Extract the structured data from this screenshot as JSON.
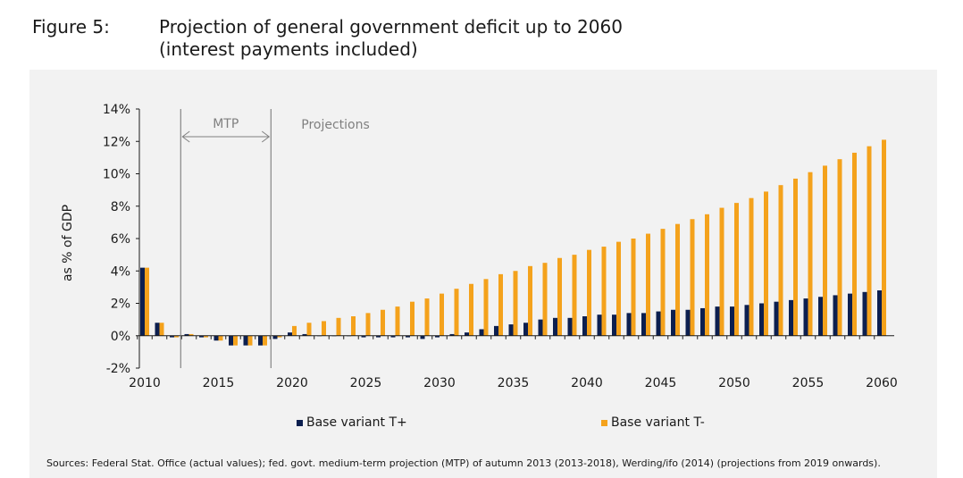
{
  "header": {
    "figure_label": "Figure 5:",
    "title_line1": "Projection of general government deficit up to 2060",
    "title_line2": "(interest payments included)"
  },
  "source_note": "Sources: Federal Stat. Office (actual values); fed. govt. medium-term projection (MTP) of autumn 2013 (2013-2018), Werding/ifo (2014) (projections from 2019 onwards).",
  "colors": {
    "t_plus": "#0c1f4f",
    "t_minus": "#f4a21c",
    "panel": "#f2f2f2",
    "axis": "#1a1a1a",
    "annotation": "#808080"
  },
  "chart_data": {
    "type": "bar",
    "ylabel": "as % of GDP",
    "ylim": [
      -2,
      14
    ],
    "yticks": [
      -2,
      0,
      2,
      4,
      6,
      8,
      10,
      12,
      14
    ],
    "ytick_labels": [
      "-2%",
      "0%",
      "2%",
      "4%",
      "6%",
      "8%",
      "10%",
      "12%",
      "14%"
    ],
    "xtick_labels": [
      "2010",
      "2015",
      "2020",
      "2025",
      "2030",
      "2035",
      "2040",
      "2045",
      "2050",
      "2055",
      "2060"
    ],
    "annotations": {
      "mtp_label": "MTP",
      "projections_label": "Projections",
      "mtp_start": 2013,
      "mtp_end": 2019
    },
    "legend_position": "bottom",
    "categories": [
      2010,
      2011,
      2012,
      2013,
      2014,
      2015,
      2016,
      2017,
      2018,
      2019,
      2020,
      2021,
      2022,
      2023,
      2024,
      2025,
      2026,
      2027,
      2028,
      2029,
      2030,
      2031,
      2032,
      2033,
      2034,
      2035,
      2036,
      2037,
      2038,
      2039,
      2040,
      2041,
      2042,
      2043,
      2044,
      2045,
      2046,
      2047,
      2048,
      2049,
      2050,
      2051,
      2052,
      2053,
      2054,
      2055,
      2056,
      2057,
      2058,
      2059,
      2060
    ],
    "series": [
      {
        "name": "Base variant T+",
        "values": [
          4.2,
          0.8,
          -0.1,
          0.1,
          -0.1,
          -0.3,
          -0.6,
          -0.6,
          -0.6,
          -0.2,
          0.2,
          0.1,
          0.0,
          0.0,
          0.0,
          -0.1,
          -0.1,
          -0.1,
          -0.1,
          -0.2,
          -0.1,
          0.1,
          0.2,
          0.4,
          0.6,
          0.7,
          0.8,
          1.0,
          1.1,
          1.1,
          1.2,
          1.3,
          1.3,
          1.4,
          1.4,
          1.5,
          1.6,
          1.6,
          1.7,
          1.8,
          1.8,
          1.9,
          2.0,
          2.1,
          2.2,
          2.3,
          2.4,
          2.5,
          2.6,
          2.7,
          2.8
        ]
      },
      {
        "name": "Base variant T-",
        "values": [
          4.2,
          0.8,
          -0.1,
          0.1,
          -0.1,
          -0.3,
          -0.6,
          -0.6,
          -0.6,
          -0.1,
          0.6,
          0.8,
          0.9,
          1.1,
          1.2,
          1.4,
          1.6,
          1.8,
          2.1,
          2.3,
          2.6,
          2.9,
          3.2,
          3.5,
          3.8,
          4.0,
          4.3,
          4.5,
          4.8,
          5.0,
          5.3,
          5.5,
          5.8,
          6.0,
          6.3,
          6.6,
          6.9,
          7.2,
          7.5,
          7.9,
          8.2,
          8.5,
          8.9,
          9.3,
          9.7,
          10.1,
          10.5,
          10.9,
          11.3,
          11.7,
          12.1
        ]
      }
    ]
  }
}
